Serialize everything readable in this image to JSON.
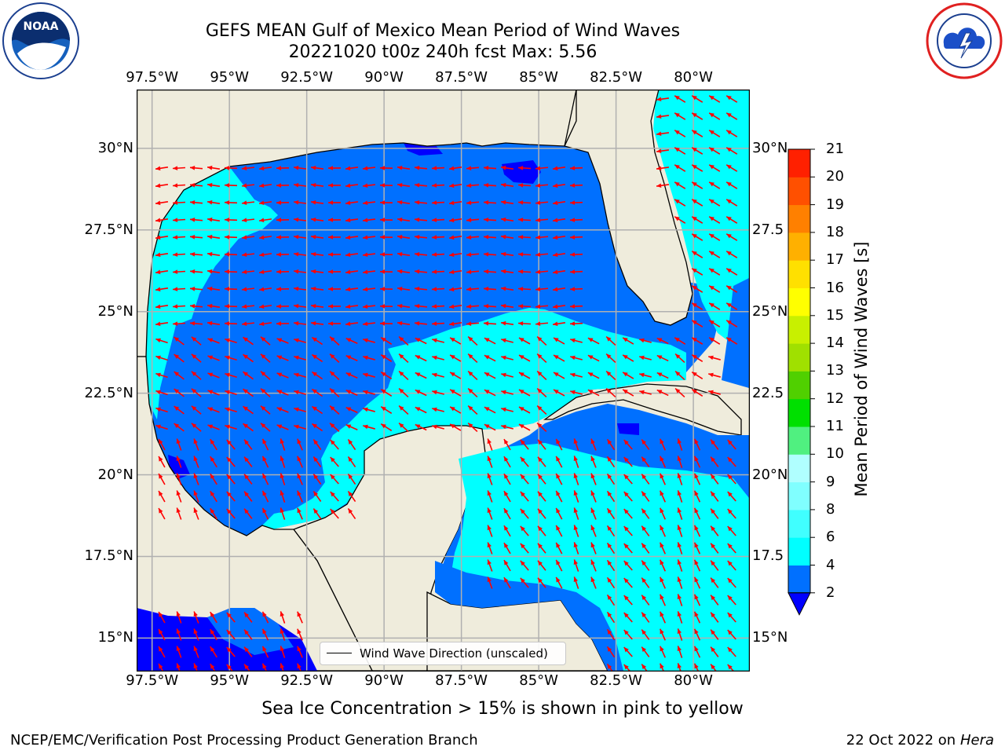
{
  "title": {
    "line1": "GEFS MEAN Gulf of Mexico Mean Period of Wind Waves",
    "line2": "20221020 t00z 240h fcst   Max: 5.56"
  },
  "axes": {
    "lon_ticks": [
      "97.5°W",
      "95°W",
      "92.5°W",
      "90°W",
      "87.5°W",
      "85°W",
      "82.5°W",
      "80°W"
    ],
    "lat_ticks_left": [
      "30°N",
      "27.5°N",
      "25°N",
      "22.5°N",
      "20°N",
      "17.5°N",
      "15°N"
    ],
    "lat_ticks_right": [
      "30°N",
      "27.5",
      "25°N",
      "22.5",
      "20°N",
      "17.5",
      "15°N"
    ],
    "extent": {
      "lon_min": -98,
      "lon_max": -78.2,
      "lat_min": 14,
      "lat_max": 31.8
    }
  },
  "colorbar": {
    "title": "Mean Period of Wind Waves [s]",
    "labels": [
      "2",
      "4",
      "6",
      "8",
      "9",
      "10",
      "11",
      "12",
      "13",
      "14",
      "15",
      "16",
      "17",
      "18",
      "19",
      "20",
      "21"
    ],
    "colors": [
      "#0070ff",
      "#00ffff",
      "#40ffff",
      "#80ffff",
      "#b0ffff",
      "#50f080",
      "#00e000",
      "#50d000",
      "#a0e000",
      "#c8f000",
      "#ffff00",
      "#ffe000",
      "#ffb000",
      "#ff8000",
      "#ff5000",
      "#ff2000"
    ],
    "extend_color": "#0000ff"
  },
  "map_colors": {
    "land": "#efecdc",
    "coast": "#000000",
    "grid": "#b0b0b0",
    "arrow": "#ff0000",
    "low": "#0000ff",
    "band_2_4": "#0070ff",
    "band_4_6": "#00ffff"
  },
  "legend": {
    "label": "Wind Wave Direction (unscaled)"
  },
  "note": "Sea Ice Concentration > 15% is shown in pink to yellow",
  "footer": {
    "left": "NCEP/EMC/Verification Post Processing Product Generation Branch",
    "right_date": "22 Oct 2022 on ",
    "right_host": "Hera"
  },
  "logos": {
    "left": "noaa-logo",
    "right": "nws-logo"
  }
}
